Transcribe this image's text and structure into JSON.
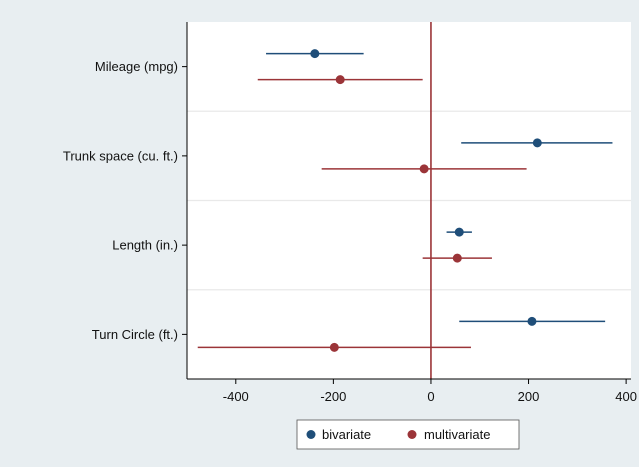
{
  "chart_data": {
    "type": "scatter",
    "subtype": "coefficient-plot",
    "title": "",
    "xlabel": "",
    "ylabel": "",
    "xlim": [
      -500,
      410
    ],
    "xticks": [
      -400,
      -200,
      0,
      200,
      400
    ],
    "xtick_labels": [
      "-400",
      "-200",
      "0",
      "200",
      "400"
    ],
    "reference_line_x": 0,
    "grid": true,
    "legend_position": "bottom",
    "categories": [
      "Mileage (mpg)",
      "Trunk space (cu. ft.)",
      "Length (in.)",
      "Turn Circle (ft.)"
    ],
    "series": [
      {
        "name": "bivariate",
        "color": "#1f4e79",
        "points": [
          {
            "category": "Mileage (mpg)",
            "estimate": -238,
            "ci_low": -338,
            "ci_high": -138
          },
          {
            "category": "Trunk space (cu. ft.)",
            "estimate": 218,
            "ci_low": 62,
            "ci_high": 372
          },
          {
            "category": "Length (in.)",
            "estimate": 58,
            "ci_low": 32,
            "ci_high": 84
          },
          {
            "category": "Turn Circle (ft.)",
            "estimate": 207,
            "ci_low": 58,
            "ci_high": 357
          }
        ]
      },
      {
        "name": "multivariate",
        "color": "#9b3438",
        "points": [
          {
            "category": "Mileage (mpg)",
            "estimate": -186,
            "ci_low": -355,
            "ci_high": -17
          },
          {
            "category": "Trunk space (cu. ft.)",
            "estimate": -14,
            "ci_low": -224,
            "ci_high": 196
          },
          {
            "category": "Length (in.)",
            "estimate": 54,
            "ci_low": -17,
            "ci_high": 125
          },
          {
            "category": "Turn Circle (ft.)",
            "estimate": -198,
            "ci_low": -478,
            "ci_high": 82
          }
        ]
      }
    ]
  }
}
